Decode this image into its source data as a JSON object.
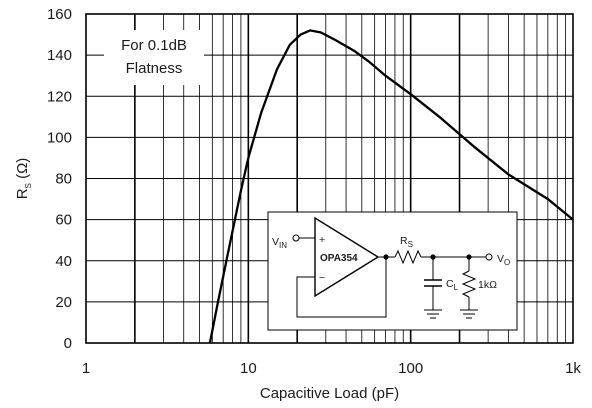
{
  "chart_data": {
    "type": "line",
    "title": "",
    "ylabel_main": "R",
    "ylabel_sub": "S",
    "ylabel_unit": " (Ω)",
    "xlabel": "Capacitive Load (pF)",
    "xscale": "log",
    "xlim": [
      1,
      1000
    ],
    "ylim": [
      0,
      160
    ],
    "grid": true,
    "x_tick_labels": [
      "1",
      "10",
      "100",
      "1k"
    ],
    "y_tick_labels": [
      "0",
      "20",
      "40",
      "60",
      "80",
      "100",
      "120",
      "140",
      "160"
    ],
    "series": [
      {
        "x": [
          5.8,
          6.5,
          7.5,
          9,
          10,
          12,
          15,
          18,
          21,
          24,
          28,
          35,
          45,
          55,
          70,
          100,
          150,
          250,
          400,
          700,
          1000
        ],
        "y": [
          0,
          20,
          44,
          74,
          90,
          112,
          133,
          145,
          150,
          152,
          151,
          147,
          142,
          137,
          130,
          121,
          110,
          95,
          82,
          70,
          60
        ]
      }
    ],
    "annotations": [
      "For 0.1dB",
      "Flatness"
    ]
  },
  "inset": {
    "vin_main": "V",
    "vin_sub": "IN",
    "plus": "+",
    "minus": "−",
    "opamp": "OPA354",
    "rs_main": "R",
    "rs_sub": "S",
    "cl_main": "C",
    "cl_sub": "L",
    "rload": "1kΩ",
    "vo_main": "V",
    "vo_sub": "O"
  }
}
